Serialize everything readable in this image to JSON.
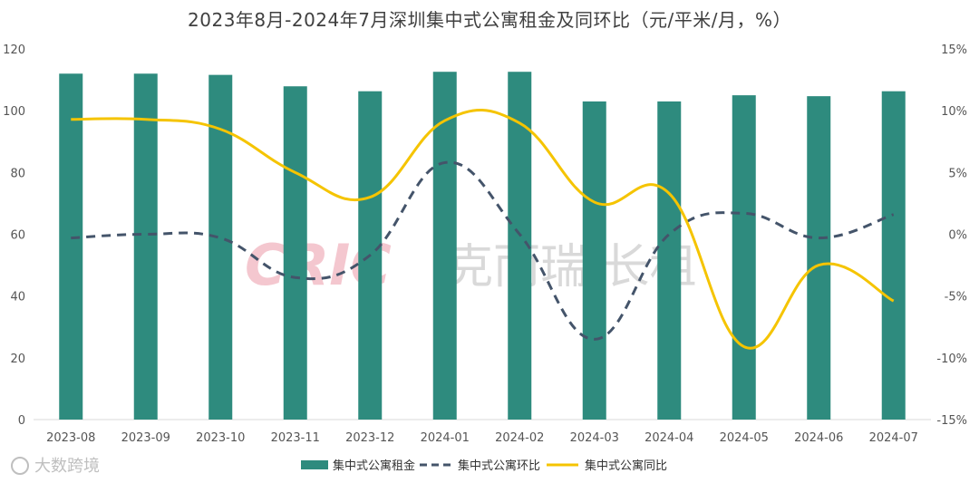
{
  "chart_data": {
    "type": "bar",
    "title": "2023年8月-2024年7月深圳集中式公寓租金及同环比（元/平米/月，%）",
    "categories": [
      "2023-08",
      "2023-09",
      "2023-10",
      "2023-11",
      "2023-12",
      "2024-01",
      "2024-02",
      "2024-03",
      "2024-04",
      "2024-05",
      "2024-06",
      "2024-07"
    ],
    "series": [
      {
        "name": "集中式公寓租金",
        "type": "bar",
        "axis": "left",
        "color": "#2e8b7e",
        "values": [
          112.0,
          112.0,
          111.6,
          107.9,
          106.3,
          112.6,
          112.6,
          103.0,
          103.0,
          105.0,
          104.7,
          106.3
        ]
      },
      {
        "name": "集中式公寓环比",
        "type": "line",
        "style": "dashed",
        "axis": "right",
        "color": "#44546a",
        "values": [
          -0.3,
          0.0,
          -0.3,
          -3.5,
          -1.7,
          5.8,
          0.0,
          -8.5,
          0.0,
          1.7,
          -0.3,
          1.6
        ]
      },
      {
        "name": "集中式公寓同比",
        "type": "line",
        "style": "solid",
        "axis": "right",
        "color": "#f5c400",
        "values": [
          9.3,
          9.3,
          8.5,
          5.0,
          3.0,
          9.2,
          9.0,
          2.6,
          3.3,
          -9.1,
          -2.5,
          -5.4
        ]
      }
    ],
    "y_left": {
      "range": [
        0,
        120
      ],
      "ticks": [
        "0",
        "20",
        "40",
        "60",
        "80",
        "100",
        "120"
      ]
    },
    "y_right": {
      "range": [
        -15,
        15
      ],
      "ticks": [
        "-15%",
        "-10%",
        "-5%",
        "0%",
        "5%",
        "10%",
        "15%"
      ]
    },
    "grid": false,
    "legend_position": "bottom"
  },
  "watermarks": {
    "logo": "CRIC",
    "brand": "克而瑞·长租",
    "corner": "大数跨境"
  }
}
